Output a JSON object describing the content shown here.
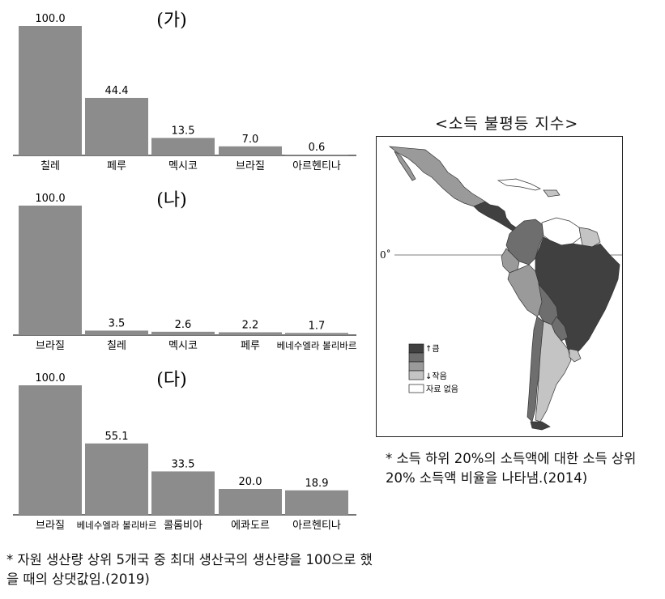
{
  "chart_data": [
    {
      "type": "bar",
      "title": "(가)",
      "categories": [
        "칠레",
        "페루",
        "멕시코",
        "브라질",
        "아르헨티나"
      ],
      "values": [
        100.0,
        44.4,
        13.5,
        7.0,
        0.6
      ],
      "value_labels": [
        "100.0",
        "44.4",
        "13.5",
        "7.0",
        "0.6"
      ],
      "ylim": [
        0,
        100
      ]
    },
    {
      "type": "bar",
      "title": "(나)",
      "categories": [
        "브라질",
        "칠레",
        "멕시코",
        "페루",
        "베네수엘라 볼리바르"
      ],
      "values": [
        100.0,
        3.5,
        2.6,
        2.2,
        1.7
      ],
      "value_labels": [
        "100.0",
        "3.5",
        "2.6",
        "2.2",
        "1.7"
      ],
      "ylim": [
        0,
        100
      ]
    },
    {
      "type": "bar",
      "title": "(다)",
      "categories": [
        "브라질",
        "베네수엘라 볼리바르",
        "콜롬비아",
        "에콰도르",
        "아르헨티나"
      ],
      "values": [
        100.0,
        55.1,
        33.5,
        20.0,
        18.9
      ],
      "value_labels": [
        "100.0",
        "55.1",
        "33.5",
        "20.0",
        "18.9"
      ],
      "ylim": [
        0,
        100
      ]
    }
  ],
  "bar_color": "#8c8c8c",
  "left_note": "* 자원 생산량 상위 5개국 중 최대 생산국의 생산량을 100으로 했을 때의 상댓값임.(2019)",
  "map": {
    "title": "<소득 불평등 지수>",
    "equator_label": "0˚",
    "legend_high": "↑큼",
    "legend_low": "↓작음",
    "legend_nodata": "자료 없음",
    "note": "* 소득 하위 20%의 소득액에 대한 소득 상위 20% 소득액 비율을 나타냄.(2014)",
    "shades": [
      "#404040",
      "#6e6e6e",
      "#9a9a9a",
      "#c4c4c4",
      "#ffffff"
    ]
  }
}
